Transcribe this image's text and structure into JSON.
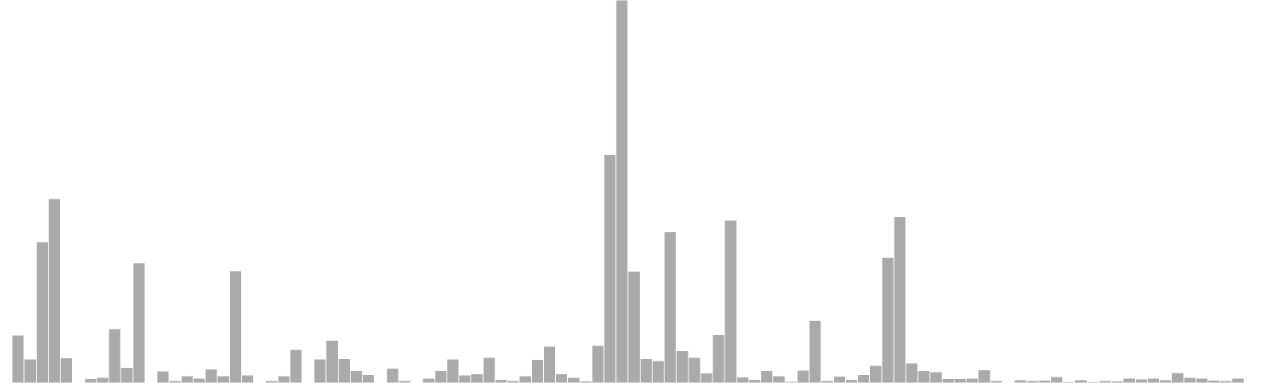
{
  "chart_data": {
    "type": "bar",
    "title": "",
    "xlabel": "",
    "ylabel": "",
    "grid": false,
    "legend": "none",
    "ylim": [
      0,
      100
    ],
    "bar_color": "#aaaaaa",
    "values": [
      0,
      12.5,
      6.3,
      36.9,
      48.1,
      6.6,
      0,
      1.1,
      1.5,
      14.2,
      4.1,
      31.4,
      0,
      3.1,
      0.6,
      1.9,
      1.3,
      3.6,
      1.9,
      29.3,
      2.1,
      0.2,
      0.6,
      1.9,
      8.7,
      0,
      6.2,
      11.1,
      6.4,
      3.2,
      2.2,
      0,
      3.9,
      0.6,
      0.2,
      1.2,
      3.2,
      6.2,
      2.1,
      2.4,
      6.7,
      0.9,
      0.6,
      1.9,
      6.1,
      9.6,
      2.4,
      1.5,
      0.5,
      9.8,
      59.7,
      100,
      29.2,
      6.4,
      5.8,
      39.5,
      8.4,
      6.7,
      2.6,
      12.6,
      42.5,
      1.6,
      0.9,
      3.2,
      1.9,
      0.4,
      3.3,
      16.4,
      0.6,
      1.8,
      0.9,
      2.2,
      4.6,
      32.8,
      43.4,
      5.2,
      3.2,
      2.9,
      1.1,
      1.1,
      1.2,
      3.4,
      0.6,
      0.1,
      0.8,
      0.6,
      0.7,
      1.7,
      0.3,
      0.8,
      0.3,
      0.6,
      0.5,
      1.3,
      1,
      1.3,
      0.8,
      2.7,
      1.5,
      1.2,
      0.7,
      0.6,
      1.2,
      0.2
    ]
  }
}
